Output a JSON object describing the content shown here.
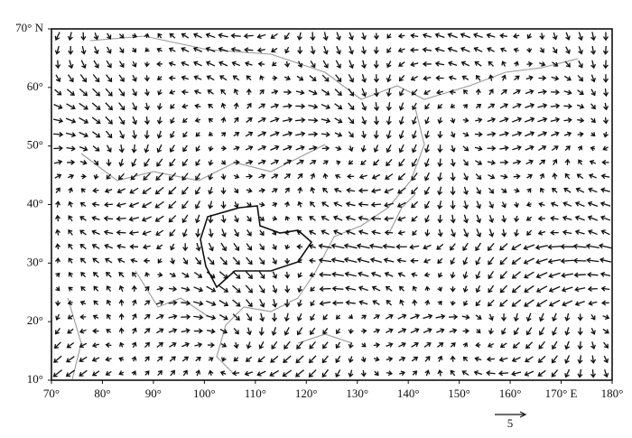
{
  "map": {
    "lon_ticks": [
      {
        "value": 70,
        "label": "70°"
      },
      {
        "value": 80,
        "label": "80°"
      },
      {
        "value": 90,
        "label": "90°"
      },
      {
        "value": 100,
        "label": "100°"
      },
      {
        "value": 110,
        "label": "110°"
      },
      {
        "value": 120,
        "label": "120°"
      },
      {
        "value": 130,
        "label": "130°"
      },
      {
        "value": 140,
        "label": "140°"
      },
      {
        "value": 150,
        "label": "150°"
      },
      {
        "value": 160,
        "label": "160°"
      },
      {
        "value": 170,
        "label": "170° E"
      },
      {
        "value": 180,
        "label": "180°"
      }
    ],
    "lat_ticks": [
      {
        "value": 10,
        "label": "10°"
      },
      {
        "value": 20,
        "label": "20°"
      },
      {
        "value": 30,
        "label": "30°"
      },
      {
        "value": 40,
        "label": "40°"
      },
      {
        "value": 50,
        "label": "50°"
      },
      {
        "value": 60,
        "label": "60°"
      },
      {
        "value": 70,
        "label": "70° N"
      }
    ],
    "lon_range": [
      70,
      180
    ],
    "lat_range": [
      10,
      70
    ],
    "reference_vector": 5
  }
}
